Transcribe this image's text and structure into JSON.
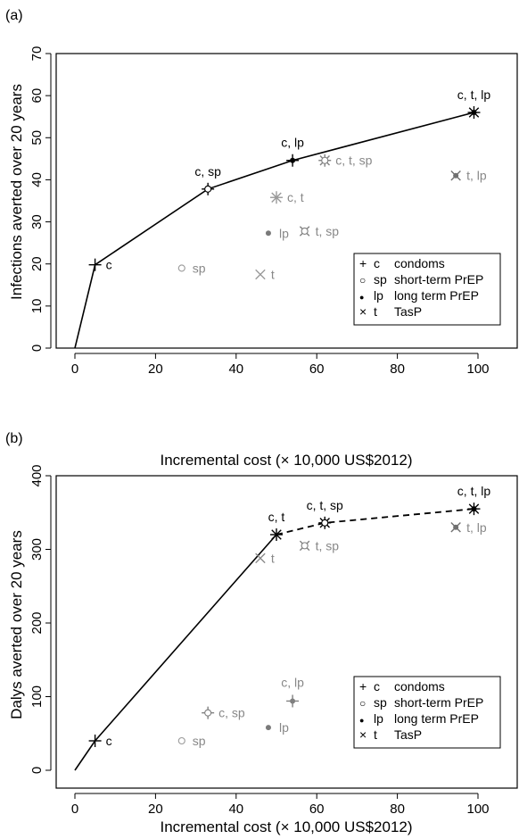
{
  "chart_data": [
    {
      "panel_label": "(a)",
      "type": "scatter",
      "title": "",
      "xlabel": "",
      "ylabel": "Infections averted over 20 years",
      "xlim": [
        0,
        110
      ],
      "ylim": [
        0,
        70
      ],
      "xticks": [
        0,
        20,
        40,
        60,
        80,
        100
      ],
      "yticks": [
        0,
        10,
        20,
        30,
        40,
        50,
        60,
        70
      ],
      "points": [
        {
          "x": 0,
          "y": 0,
          "label": "",
          "symbols": [],
          "color": "#000000",
          "size": 1.0
        },
        {
          "x": 5,
          "y": 19.8,
          "label": "c",
          "symbols": [
            "plus"
          ],
          "color": "#000000",
          "size": 1.0
        },
        {
          "x": 33,
          "y": 37.8,
          "label": "c, sp",
          "symbols": [
            "plus",
            "circle"
          ],
          "color": "#000000",
          "size": 1.0
        },
        {
          "x": 54,
          "y": 44.6,
          "label": "c, lp",
          "symbols": [
            "plus",
            "dot"
          ],
          "color": "#000000",
          "size": 1.0
        },
        {
          "x": 99,
          "y": 56,
          "label": "c, t, lp",
          "symbols": [
            "plus",
            "x",
            "dot"
          ],
          "color": "#000000",
          "size": 1.0
        },
        {
          "x": 62,
          "y": 44.6,
          "label": "c, t, sp",
          "symbols": [
            "plus",
            "x",
            "circle"
          ],
          "color": "#808080",
          "size": 1.0
        },
        {
          "x": 50,
          "y": 35.8,
          "label": "c, t",
          "symbols": [
            "plus",
            "x"
          ],
          "color": "#9a9a9a",
          "size": 1.0
        },
        {
          "x": 48,
          "y": 27.3,
          "label": "lp",
          "symbols": [
            "dot"
          ],
          "color": "#7a7a7a",
          "size": 1.0
        },
        {
          "x": 57,
          "y": 27.8,
          "label": "t, sp",
          "symbols": [
            "x",
            "circle"
          ],
          "color": "#808080",
          "size": 1.0
        },
        {
          "x": 26.5,
          "y": 19,
          "label": "sp",
          "symbols": [
            "circle"
          ],
          "color": "#9a9a9a",
          "size": 1.0
        },
        {
          "x": 46,
          "y": 17.5,
          "label": "t",
          "symbols": [
            "x"
          ],
          "color": "#9a9a9a",
          "size": 1.0
        },
        {
          "x": 94.5,
          "y": 41,
          "label": "t, lp",
          "symbols": [
            "x",
            "dot"
          ],
          "color": "#707070",
          "size": 1.0
        }
      ],
      "frontier_solid": [
        [
          0,
          0
        ],
        [
          5,
          19.8
        ],
        [
          33,
          37.8
        ],
        [
          54,
          44.6
        ],
        [
          99,
          56
        ]
      ],
      "frontier_dashed": [],
      "legend": {
        "placement": "bottom-right",
        "entries": [
          {
            "symbol_char": "+",
            "code": "c",
            "text": "condoms"
          },
          {
            "symbol_char": "○",
            "code": "sp",
            "text": "short-term PrEP"
          },
          {
            "symbol_char": "●",
            "code": "lp",
            "text": "long term PrEP"
          },
          {
            "symbol_char": "×",
            "code": "t",
            "text": "TasP"
          }
        ]
      }
    },
    {
      "panel_label": "(b)",
      "type": "scatter",
      "title": "Incremental cost (× 10,000 US$2012)",
      "xlabel": "Incremental cost (× 10,000 US$2012)",
      "ylabel": "Dalys averted over 20 years",
      "xlim": [
        0,
        110
      ],
      "ylim": [
        0,
        400
      ],
      "xticks": [
        0,
        20,
        40,
        60,
        80,
        100
      ],
      "yticks": [
        0,
        100,
        200,
        300,
        400
      ],
      "points": [
        {
          "x": 0,
          "y": 0,
          "label": "",
          "symbols": [],
          "color": "#000000",
          "size": 1.0
        },
        {
          "x": 5,
          "y": 40,
          "label": "c",
          "symbols": [
            "plus"
          ],
          "color": "#000000",
          "size": 1.0
        },
        {
          "x": 50,
          "y": 320,
          "label": "c, t",
          "symbols": [
            "plus",
            "x"
          ],
          "color": "#000000",
          "size": 1.0
        },
        {
          "x": 62,
          "y": 336,
          "label": "c, t, sp",
          "symbols": [
            "plus",
            "x",
            "circle"
          ],
          "color": "#000000",
          "size": 1.0
        },
        {
          "x": 99,
          "y": 355,
          "label": "c, t, lp",
          "symbols": [
            "plus",
            "x",
            "dot"
          ],
          "color": "#000000",
          "size": 1.0
        },
        {
          "x": 46,
          "y": 288,
          "label": "t",
          "symbols": [
            "x"
          ],
          "color": "#8a8a8a",
          "size": 1.0
        },
        {
          "x": 57,
          "y": 305,
          "label": "t, sp",
          "symbols": [
            "x",
            "circle"
          ],
          "color": "#808080",
          "size": 1.0
        },
        {
          "x": 94.5,
          "y": 330,
          "label": "t, lp",
          "symbols": [
            "x",
            "dot"
          ],
          "color": "#707070",
          "size": 1.0
        },
        {
          "x": 33,
          "y": 78,
          "label": "c, sp",
          "symbols": [
            "plus",
            "circle"
          ],
          "color": "#808080",
          "size": 1.0
        },
        {
          "x": 54,
          "y": 94,
          "label": "c, lp",
          "symbols": [
            "plus",
            "dot"
          ],
          "color": "#808080",
          "size": 1.0
        },
        {
          "x": 48,
          "y": 58,
          "label": "lp",
          "symbols": [
            "dot"
          ],
          "color": "#7a7a7a",
          "size": 1.0
        },
        {
          "x": 26.5,
          "y": 40,
          "label": "sp",
          "symbols": [
            "circle"
          ],
          "color": "#9a9a9a",
          "size": 1.0
        }
      ],
      "frontier_solid": [
        [
          0,
          0
        ],
        [
          5,
          40
        ],
        [
          50,
          320
        ]
      ],
      "frontier_dashed": [
        [
          50,
          320
        ],
        [
          62,
          336
        ],
        [
          99,
          355
        ]
      ],
      "legend": {
        "placement": "bottom-right",
        "entries": [
          {
            "symbol_char": "+",
            "code": "c",
            "text": "condoms"
          },
          {
            "symbol_char": "○",
            "code": "sp",
            "text": "short-term PrEP"
          },
          {
            "symbol_char": "●",
            "code": "lp",
            "text": "long term PrEP"
          },
          {
            "symbol_char": "×",
            "code": "t",
            "text": "TasP"
          }
        ]
      }
    }
  ]
}
